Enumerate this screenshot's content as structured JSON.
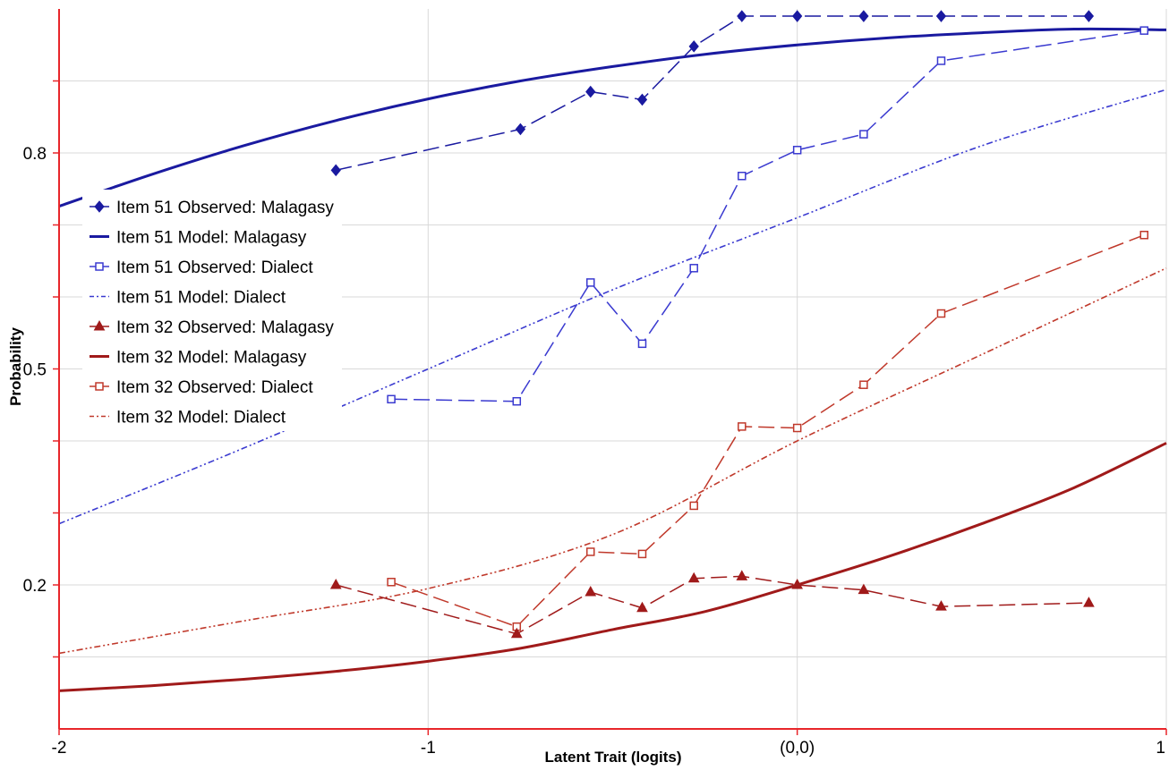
{
  "chart_data": {
    "type": "line",
    "xlabel": "Latent Trait (logits)",
    "ylabel": "Probability",
    "xlim": [
      -2,
      1
    ],
    "ylim": [
      0.0,
      1.0
    ],
    "x_ticks": [
      {
        "value": -2,
        "label": "-2"
      },
      {
        "value": -1,
        "label": "-1"
      },
      {
        "value": 0,
        "label": "(0,0)"
      },
      {
        "value": 1,
        "label": "1"
      }
    ],
    "y_ticks": [
      {
        "value": 0.2,
        "label": "0.2"
      },
      {
        "value": 0.5,
        "label": "0.5"
      },
      {
        "value": 0.8,
        "label": "0.8"
      }
    ],
    "y_gridlines": [
      0.1,
      0.2,
      0.3,
      0.4,
      0.5,
      0.6,
      0.7,
      0.8,
      0.9
    ],
    "x_gridlines": [
      -1,
      0,
      1
    ],
    "legend_position": "left",
    "axis_color": "#e8262a",
    "series": [
      {
        "name": "Item 51 Observed: Malagasy",
        "kind": "observed",
        "color": "#1a1aa0",
        "marker": "diamond-filled",
        "line": "dashed",
        "x": [
          -1.25,
          -0.75,
          -0.56,
          -0.42,
          -0.28,
          -0.15,
          0.0,
          0.18,
          0.39,
          0.79
        ],
        "y": [
          0.776,
          0.833,
          0.885,
          0.874,
          0.948,
          0.99,
          0.99,
          0.99,
          0.99,
          0.99
        ]
      },
      {
        "name": "Item 51 Model: Malagasy",
        "kind": "model",
        "color": "#1a1aa0",
        "line": "solid-thick",
        "x": [
          -2.0,
          -1.75,
          -1.5,
          -1.25,
          -1.0,
          -0.75,
          -0.5,
          -0.25,
          0.0,
          0.25,
          0.5,
          0.75,
          1.0
        ],
        "y": [
          0.726,
          0.77,
          0.81,
          0.845,
          0.875,
          0.9,
          0.92,
          0.937,
          0.95,
          0.96,
          0.967,
          0.972,
          0.971
        ]
      },
      {
        "name": "Item 51 Observed: Dialect",
        "kind": "observed",
        "color": "#3a3ad0",
        "marker": "square-open",
        "line": "dashed",
        "x": [
          -1.1,
          -0.76,
          -0.56,
          -0.42,
          -0.28,
          -0.15,
          0.0,
          0.18,
          0.39,
          0.94
        ],
        "y": [
          0.458,
          0.455,
          0.62,
          0.535,
          0.64,
          0.768,
          0.804,
          0.826,
          0.928,
          0.97
        ]
      },
      {
        "name": "Item 51 Model: Dialect",
        "kind": "model",
        "color": "#3a3ad0",
        "line": "dash-dot-dot",
        "x": [
          -2.0,
          -1.5,
          -1.0,
          -0.5,
          0.0,
          0.5,
          1.0
        ],
        "y": [
          0.285,
          0.39,
          0.5,
          0.61,
          0.71,
          0.81,
          0.888
        ]
      },
      {
        "name": "Item 32 Observed: Malagasy",
        "kind": "observed",
        "color": "#a01a1a",
        "marker": "triangle-filled",
        "line": "dashed",
        "x": [
          -1.25,
          -0.76,
          -0.56,
          -0.42,
          -0.28,
          -0.15,
          0.0,
          0.18,
          0.39,
          0.79
        ],
        "y": [
          0.2,
          0.132,
          0.19,
          0.168,
          0.209,
          0.212,
          0.2,
          0.193,
          0.17,
          0.175
        ]
      },
      {
        "name": "Item 32 Model: Malagasy",
        "kind": "model",
        "color": "#a01a1a",
        "line": "solid-thick",
        "x": [
          -2.0,
          -1.75,
          -1.5,
          -1.25,
          -1.0,
          -0.75,
          -0.5,
          -0.25,
          0.0,
          0.25,
          0.5,
          0.75,
          1.0
        ],
        "y": [
          0.053,
          0.06,
          0.069,
          0.08,
          0.094,
          0.112,
          0.138,
          0.163,
          0.2,
          0.24,
          0.285,
          0.335,
          0.397
        ]
      },
      {
        "name": "Item 32 Observed: Dialect",
        "kind": "observed",
        "color": "#c0392b",
        "marker": "square-open",
        "line": "dashed",
        "x": [
          -1.1,
          -0.76,
          -0.56,
          -0.42,
          -0.28,
          -0.15,
          0.0,
          0.18,
          0.39,
          0.94
        ],
        "y": [
          0.204,
          0.142,
          0.246,
          0.243,
          0.31,
          0.42,
          0.418,
          0.478,
          0.577,
          0.686
        ]
      },
      {
        "name": "Item 32 Model: Dialect",
        "kind": "model",
        "color": "#c0392b",
        "line": "dash-dot-dot",
        "x": [
          -2.0,
          -1.5,
          -1.0,
          -0.5,
          0.0,
          0.5,
          1.0
        ],
        "y": [
          0.105,
          0.15,
          0.195,
          0.27,
          0.4,
          0.52,
          0.64
        ]
      }
    ]
  }
}
